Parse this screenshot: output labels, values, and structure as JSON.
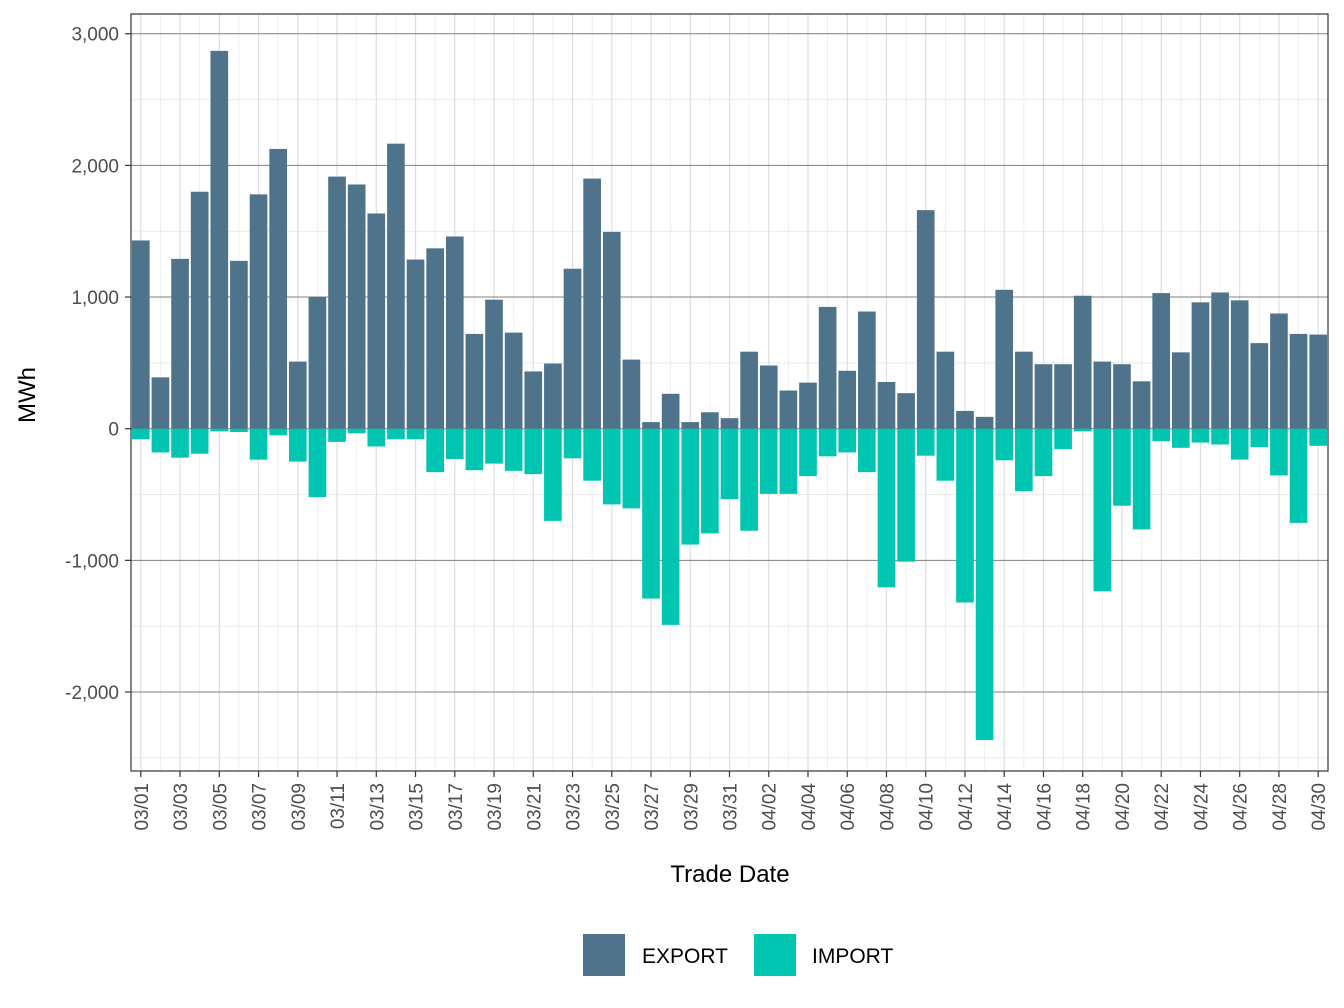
{
  "chart_data": {
    "type": "bar",
    "title": "",
    "xlabel": "Trade Date",
    "ylabel": "MWh",
    "ylim": [
      -2600,
      3150
    ],
    "y_ticks": [
      {
        "value": -2000,
        "label": "-2,000"
      },
      {
        "value": -1000,
        "label": "-1,000"
      },
      {
        "value": 0,
        "label": "0"
      },
      {
        "value": 1000,
        "label": "1,000"
      },
      {
        "value": 2000,
        "label": "2,000"
      },
      {
        "value": 3000,
        "label": "3,000"
      }
    ],
    "categories": [
      "03/01",
      "03/02",
      "03/03",
      "03/04",
      "03/05",
      "03/06",
      "03/07",
      "03/08",
      "03/09",
      "03/10",
      "03/11",
      "03/12",
      "03/13",
      "03/14",
      "03/15",
      "03/16",
      "03/17",
      "03/18",
      "03/19",
      "03/20",
      "03/21",
      "03/22",
      "03/23",
      "03/24",
      "03/25",
      "03/26",
      "03/27",
      "03/28",
      "03/29",
      "03/30",
      "03/31",
      "04/01",
      "04/02",
      "04/03",
      "04/04",
      "04/05",
      "04/06",
      "04/07",
      "04/08",
      "04/09",
      "04/10",
      "04/11",
      "04/12",
      "04/13",
      "04/14",
      "04/15",
      "04/16",
      "04/17",
      "04/18",
      "04/19",
      "04/20",
      "04/21",
      "04/22",
      "04/23",
      "04/24",
      "04/25",
      "04/26",
      "04/27",
      "04/28",
      "04/29",
      "04/30"
    ],
    "x_tick_labels": [
      "03/01",
      "03/03",
      "03/05",
      "03/07",
      "03/09",
      "03/11",
      "03/13",
      "03/15",
      "03/17",
      "03/19",
      "03/21",
      "03/23",
      "03/25",
      "03/27",
      "03/29",
      "03/31",
      "04/02",
      "04/04",
      "04/06",
      "04/08",
      "04/10",
      "04/12",
      "04/14",
      "04/16",
      "04/18",
      "04/20",
      "04/22",
      "04/24",
      "04/26",
      "04/28",
      "04/30"
    ],
    "grid": true,
    "legend_position": "bottom",
    "series": [
      {
        "name": "EXPORT",
        "color": "#4e738a",
        "values": [
          1430,
          390,
          1290,
          1800,
          2870,
          1275,
          1780,
          2125,
          510,
          1000,
          1915,
          1855,
          1635,
          2165,
          1285,
          1370,
          1460,
          720,
          980,
          730,
          435,
          495,
          1215,
          1900,
          1495,
          525,
          50,
          265,
          50,
          125,
          80,
          585,
          480,
          290,
          350,
          925,
          440,
          890,
          355,
          270,
          1660,
          585,
          135,
          90,
          1055,
          585,
          490,
          490,
          1010,
          510,
          490,
          360,
          1030,
          580,
          960,
          1035,
          975,
          650,
          875,
          720,
          715
        ]
      },
      {
        "name": "IMPORT",
        "color": "#00c5b1",
        "values": [
          -80,
          -180,
          -220,
          -190,
          -20,
          -25,
          -235,
          -50,
          -250,
          -520,
          -100,
          -35,
          -135,
          -80,
          -80,
          -330,
          -230,
          -315,
          -265,
          -320,
          -345,
          -700,
          -225,
          -395,
          -575,
          -605,
          -1290,
          -1490,
          -880,
          -795,
          -535,
          -775,
          -495,
          -495,
          -360,
          -210,
          -180,
          -330,
          -1205,
          -1010,
          -205,
          -395,
          -1320,
          -2365,
          -240,
          -475,
          -360,
          -155,
          -20,
          -1235,
          -585,
          -765,
          -95,
          -145,
          -105,
          -120,
          -235,
          -140,
          -355,
          -715,
          -130
        ]
      }
    ]
  }
}
